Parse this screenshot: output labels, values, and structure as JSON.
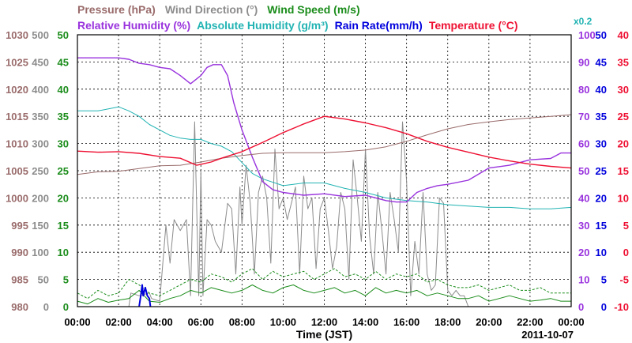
{
  "chart_data": {
    "type": "line",
    "date": "2011-10-07",
    "xlabel": "Time (JST)",
    "x_ticks": [
      "00:00",
      "02:00",
      "04:00",
      "06:00",
      "08:00",
      "10:00",
      "12:00",
      "14:00",
      "16:00",
      "18:00",
      "20:00",
      "22:00",
      "00:00"
    ],
    "grid": true,
    "legend": {
      "row1": [
        {
          "id": "pressure",
          "label": "Pressure (hPa)",
          "color": "#9a6b6b"
        },
        {
          "id": "wind_dir",
          "label": "Wind Direction (°)",
          "color": "#8c8c8c"
        },
        {
          "id": "wind_speed",
          "label": "Wind Speed (m/s)",
          "color": "#1a8c1a"
        }
      ],
      "row2": [
        {
          "id": "rh",
          "label": "Relative Humidity (%)",
          "color": "#9933dd"
        },
        {
          "id": "ah",
          "label": "Absolute Humidity (g/m³)",
          "color": "#22b3b3"
        },
        {
          "id": "rain",
          "label": "Rain Rate(mm/h)",
          "color": "#0000dd"
        },
        {
          "id": "temp",
          "label": "Temperature (°C)",
          "color": "#ee1133"
        }
      ],
      "scale_note": "x0.2"
    },
    "axes": {
      "pressure": {
        "range": [
          980,
          1030
        ],
        "ticks": [
          "1030",
          "1025",
          "1020",
          "1015",
          "1010",
          "1005",
          "1000",
          "995",
          "990",
          "985",
          "980"
        ],
        "color": "#9a6b6b"
      },
      "wind_dir": {
        "range": [
          0,
          500
        ],
        "ticks": [
          "500",
          "450",
          "400",
          "350",
          "300",
          "250",
          "200",
          "150",
          "100",
          "50",
          "0"
        ],
        "color": "#8c8c8c"
      },
      "wind_speed": {
        "range": [
          0,
          50
        ],
        "ticks": [
          "50",
          "45",
          "40",
          "35",
          "30",
          "25",
          "20",
          "15",
          "10",
          "5",
          "0"
        ],
        "color": "#1a8c1a"
      },
      "rh": {
        "range": [
          0,
          100
        ],
        "ticks": [
          "100",
          "90",
          "80",
          "70",
          "60",
          "50",
          "40",
          "30",
          "20",
          "10",
          "0"
        ],
        "color": "#9933dd"
      },
      "rain": {
        "range": [
          0,
          50
        ],
        "ticks": [
          "50",
          "45",
          "40",
          "35",
          "30",
          "25",
          "20",
          "15",
          "10",
          "5",
          "0"
        ],
        "color": "#0000dd"
      },
      "temp": {
        "range": [
          -10,
          40
        ],
        "ticks": [
          "40",
          "35",
          "30",
          "25",
          "20",
          "15",
          "10",
          "5",
          "0",
          "-5",
          "-10"
        ],
        "color": "#ee1133"
      }
    },
    "series": [
      {
        "id": "pressure",
        "color": "#9a6b6b",
        "axis": "pressure",
        "x": [
          0,
          1,
          2,
          3,
          4,
          5,
          6,
          7,
          8,
          9,
          10,
          11,
          12,
          13,
          14,
          15,
          16,
          17,
          18,
          19,
          20,
          21,
          22,
          23,
          24
        ],
        "y": [
          1004.3,
          1004.8,
          1004.9,
          1005.4,
          1005.9,
          1006.0,
          1006.6,
          1007.3,
          1007.8,
          1008.2,
          1008.3,
          1008.3,
          1008.3,
          1008.5,
          1008.8,
          1009.4,
          1010.4,
          1011.6,
          1012.7,
          1013.5,
          1014.0,
          1014.4,
          1014.7,
          1015.0,
          1015.3
        ]
      },
      {
        "id": "temp",
        "color": "#ee1133",
        "axis": "temp",
        "x": [
          0,
          1,
          2,
          3,
          4,
          5,
          5.8,
          6.5,
          7,
          8,
          9,
          10,
          11,
          12,
          13,
          14,
          15,
          16,
          17,
          18,
          19,
          20,
          21,
          22,
          23,
          24
        ],
        "y": [
          18.6,
          18.4,
          18.5,
          18.2,
          17.6,
          17.3,
          16.0,
          16.6,
          17.3,
          18.5,
          20.2,
          22.0,
          23.6,
          25.0,
          24.5,
          23.8,
          22.9,
          21.8,
          20.4,
          19.3,
          18.4,
          17.5,
          16.8,
          16.2,
          15.8,
          15.5
        ]
      },
      {
        "id": "rh",
        "color": "#9933dd",
        "axis": "rh",
        "x": [
          0,
          1,
          2,
          2.5,
          3,
          3.5,
          4,
          4.5,
          5,
          5.5,
          6,
          6.3,
          6.6,
          7,
          7.3,
          7.6,
          8,
          8.5,
          9,
          9.5,
          10,
          11,
          12,
          13,
          14,
          14.5,
          15,
          15.5,
          16,
          16.5,
          17,
          17.5,
          18,
          19,
          20,
          21,
          22,
          23,
          23.5,
          24
        ],
        "y": [
          91.5,
          91.5,
          91.5,
          91.0,
          89.5,
          89.0,
          88.0,
          87.5,
          85.0,
          82.0,
          85.0,
          88.0,
          89.0,
          89.0,
          85.0,
          75.0,
          65.0,
          55.0,
          46.0,
          43.0,
          42.0,
          41.0,
          41.5,
          40.5,
          41.0,
          40.0,
          39.0,
          38.5,
          38.5,
          42.0,
          43.5,
          44.5,
          45.0,
          46.5,
          51.0,
          52.0,
          54.0,
          54.5,
          56.5,
          56.5
        ]
      },
      {
        "id": "ah",
        "color": "#22b3b3",
        "axis": "rh",
        "x": [
          0,
          1,
          2,
          2.5,
          3,
          3.5,
          4,
          4.5,
          5,
          5.5,
          6,
          6.5,
          7,
          7.5,
          8,
          8.5,
          9,
          10,
          11,
          12,
          13,
          14,
          15,
          16,
          17,
          18,
          19,
          20,
          21,
          22,
          23,
          24
        ],
        "y": [
          72.0,
          72.0,
          73.5,
          72.0,
          70.0,
          67.0,
          65.0,
          63.0,
          62.0,
          61.5,
          61.5,
          60.0,
          59.0,
          57.0,
          53.0,
          49.0,
          47.0,
          44.5,
          45.5,
          45.5,
          43.5,
          42.0,
          40.0,
          39.0,
          38.5,
          37.5,
          37.0,
          36.5,
          36.5,
          36.0,
          36.0,
          36.5
        ]
      },
      {
        "id": "wind_dir",
        "color": "#8c8c8c",
        "axis": "wind_dir",
        "x": [
          0,
          2.5,
          2.6,
          3.0,
          3.5,
          3.6,
          4.0,
          4.3,
          4.5,
          4.7,
          5.0,
          5.3,
          5.5,
          5.7,
          5.9,
          6.0,
          6.1,
          6.3,
          6.5,
          6.7,
          7.0,
          7.3,
          7.5,
          7.7,
          7.9,
          8.0,
          8.2,
          8.4,
          8.6,
          8.8,
          9.0,
          9.2,
          9.4,
          9.6,
          9.8,
          10.0,
          10.2,
          10.4,
          10.6,
          10.8,
          11.0,
          11.2,
          11.4,
          11.6,
          11.8,
          12.0,
          12.2,
          12.4,
          12.6,
          12.8,
          13.0,
          13.2,
          13.4,
          13.6,
          13.8,
          14.0,
          14.2,
          14.4,
          14.6,
          14.8,
          15.0,
          15.2,
          15.4,
          15.6,
          15.8,
          16.0,
          16.2,
          16.4,
          16.6,
          16.8,
          17.0,
          17.2,
          17.4,
          17.6,
          17.8,
          18.0,
          18.2,
          18.4,
          18.6,
          18.8,
          19.0,
          24.0
        ],
        "y": [
          0,
          0,
          25,
          20,
          25,
          15,
          10,
          150,
          80,
          160,
          140,
          160,
          20,
          340,
          20,
          250,
          20,
          160,
          150,
          120,
          100,
          190,
          180,
          60,
          220,
          150,
          260,
          190,
          60,
          210,
          240,
          200,
          80,
          290,
          180,
          200,
          160,
          190,
          220,
          60,
          240,
          180,
          200,
          70,
          180,
          200,
          140,
          70,
          110,
          210,
          180,
          50,
          270,
          200,
          120,
          290,
          130,
          60,
          210,
          140,
          60,
          210,
          160,
          100,
          340,
          230,
          20,
          120,
          60,
          210,
          60,
          30,
          40,
          200,
          190,
          30,
          20,
          30,
          20,
          20,
          0,
          0
        ]
      },
      {
        "id": "wind_speed",
        "color": "#1a8c1a",
        "axis": "wind_speed",
        "x": [
          0,
          0.5,
          1,
          1.5,
          2,
          2.5,
          3,
          3.5,
          4,
          4.5,
          5,
          5.5,
          6,
          6.5,
          7,
          7.5,
          8,
          8.5,
          9,
          9.5,
          10,
          10.5,
          11,
          11.5,
          12,
          12.5,
          13,
          13.5,
          14,
          14.5,
          15,
          15.5,
          16,
          16.5,
          17,
          17.5,
          18,
          18.5,
          19,
          19.5,
          20,
          20.5,
          21,
          21.5,
          22,
          22.5,
          23,
          23.5,
          24
        ],
        "y": [
          1.0,
          0.5,
          1.5,
          0.8,
          1.2,
          1.5,
          3.0,
          1.0,
          0.8,
          1.5,
          2.0,
          3.0,
          2.5,
          3.5,
          3.0,
          2.5,
          3.0,
          4.0,
          3.0,
          2.5,
          3.5,
          4.0,
          3.0,
          2.5,
          3.0,
          3.5,
          2.5,
          3.0,
          2.0,
          3.5,
          2.5,
          3.0,
          2.5,
          3.0,
          2.0,
          2.5,
          2.0,
          1.5,
          1.5,
          2.0,
          1.0,
          1.5,
          2.0,
          1.5,
          1.0,
          1.2,
          1.5,
          1.0,
          1.0
        ]
      },
      {
        "id": "wind_gust",
        "color": "#1a8c1a",
        "axis": "wind_speed",
        "dashed": true,
        "x": [
          0,
          0.5,
          1,
          1.5,
          2,
          2.5,
          3,
          3.5,
          4,
          4.5,
          5,
          5.5,
          6,
          6.5,
          7,
          7.5,
          8,
          8.5,
          9,
          9.5,
          10,
          10.5,
          11,
          11.5,
          12,
          12.5,
          13,
          13.5,
          14,
          14.5,
          15,
          15.5,
          16,
          16.5,
          17,
          17.5,
          18,
          18.5,
          19,
          19.5,
          20,
          20.5,
          21,
          21.5,
          22,
          22.5,
          23,
          23.5,
          24
        ],
        "y": [
          2.5,
          1.5,
          3.0,
          2.0,
          2.5,
          5.0,
          4.0,
          2.5,
          2.0,
          3.0,
          4.0,
          5.0,
          4.5,
          6.0,
          5.5,
          4.5,
          6.0,
          7.0,
          5.0,
          6.5,
          5.5,
          6.0,
          6.5,
          5.0,
          6.0,
          7.0,
          5.5,
          6.0,
          5.0,
          6.5,
          5.0,
          6.0,
          5.5,
          6.0,
          4.5,
          5.0,
          4.0,
          3.5,
          3.5,
          4.0,
          3.0,
          3.5,
          4.0,
          3.0,
          3.0,
          3.5,
          2.5,
          2.5,
          2.5
        ]
      },
      {
        "id": "rain",
        "color": "#0000dd",
        "axis": "rain",
        "x": [
          3.0,
          3.1,
          3.15,
          3.2,
          3.3,
          3.4,
          3.5,
          3.55
        ],
        "y": [
          0,
          2.5,
          4.0,
          2.0,
          3.5,
          2.0,
          1.5,
          0
        ]
      }
    ]
  }
}
